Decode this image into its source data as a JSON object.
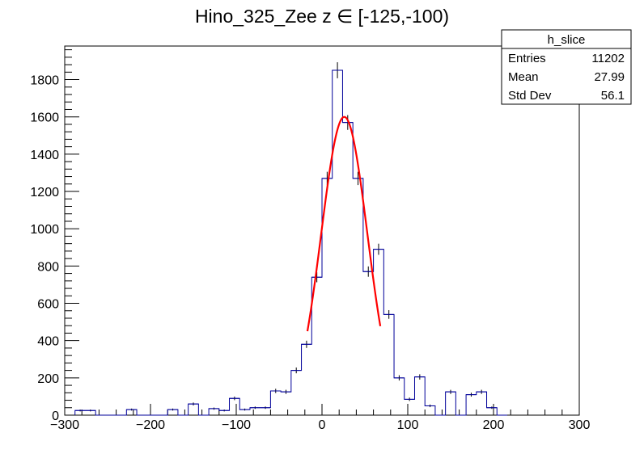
{
  "chart_data": {
    "type": "histogram",
    "title": "Hino_325_Zee z  ∈ [-125,-100)",
    "xlabel": "",
    "ylabel": "",
    "xlim": [
      -300,
      300
    ],
    "ylim": [
      0,
      1980
    ],
    "x_ticks": [
      -300,
      -200,
      -100,
      0,
      100,
      200,
      300
    ],
    "x_tick_labels": [
      "−300",
      "−200",
      "−100",
      "0",
      "100",
      "200",
      "300"
    ],
    "y_ticks": [
      0,
      200,
      400,
      600,
      800,
      1000,
      1200,
      1400,
      1600,
      1800
    ],
    "y_tick_labels": [
      "0",
      "200",
      "400",
      "600",
      "800",
      "1000",
      "1200",
      "1400",
      "1600",
      "1800"
    ],
    "bin_width": 12,
    "bin_edges_start": -288,
    "bins": [
      {
        "x": -282,
        "y": 25
      },
      {
        "x": -270,
        "y": 25
      },
      {
        "x": -258,
        "y": 0
      },
      {
        "x": -246,
        "y": 0
      },
      {
        "x": -234,
        "y": 0
      },
      {
        "x": -222,
        "y": 30
      },
      {
        "x": -210,
        "y": 0
      },
      {
        "x": -198,
        "y": 0
      },
      {
        "x": -186,
        "y": 0
      },
      {
        "x": -174,
        "y": 30
      },
      {
        "x": -162,
        "y": 0
      },
      {
        "x": -150,
        "y": 60
      },
      {
        "x": -138,
        "y": 0
      },
      {
        "x": -126,
        "y": 35
      },
      {
        "x": -114,
        "y": 25
      },
      {
        "x": -102,
        "y": 90
      },
      {
        "x": -90,
        "y": 30
      },
      {
        "x": -78,
        "y": 40
      },
      {
        "x": -66,
        "y": 40
      },
      {
        "x": -54,
        "y": 130
      },
      {
        "x": -42,
        "y": 125
      },
      {
        "x": -30,
        "y": 240
      },
      {
        "x": -18,
        "y": 380
      },
      {
        "x": -6,
        "y": 740
      },
      {
        "x": 6,
        "y": 1270
      },
      {
        "x": 18,
        "y": 1850
      },
      {
        "x": 30,
        "y": 1570
      },
      {
        "x": 42,
        "y": 1270
      },
      {
        "x": 54,
        "y": 770
      },
      {
        "x": 66,
        "y": 890
      },
      {
        "x": 78,
        "y": 540
      },
      {
        "x": 90,
        "y": 200
      },
      {
        "x": 102,
        "y": 85
      },
      {
        "x": 114,
        "y": 205
      },
      {
        "x": 126,
        "y": 50
      },
      {
        "x": 138,
        "y": 0
      },
      {
        "x": 150,
        "y": 125
      },
      {
        "x": 162,
        "y": 0
      },
      {
        "x": 174,
        "y": 110
      },
      {
        "x": 186,
        "y": 125
      },
      {
        "x": 198,
        "y": 40
      },
      {
        "x": 210,
        "y": 0
      }
    ],
    "fit": {
      "function": "gaussian",
      "color": "#ff0000",
      "amplitude": 1600,
      "mean": 26,
      "sigma": 27,
      "x_range": [
        -17,
        68
      ]
    },
    "histogram_color": "#000099",
    "stats_box": {
      "name": "h_slice",
      "rows": [
        {
          "label": "Entries",
          "value": "11202"
        },
        {
          "label": "Mean",
          "value": "27.99"
        },
        {
          "label": "Std Dev",
          "value": "56.1"
        }
      ]
    }
  }
}
